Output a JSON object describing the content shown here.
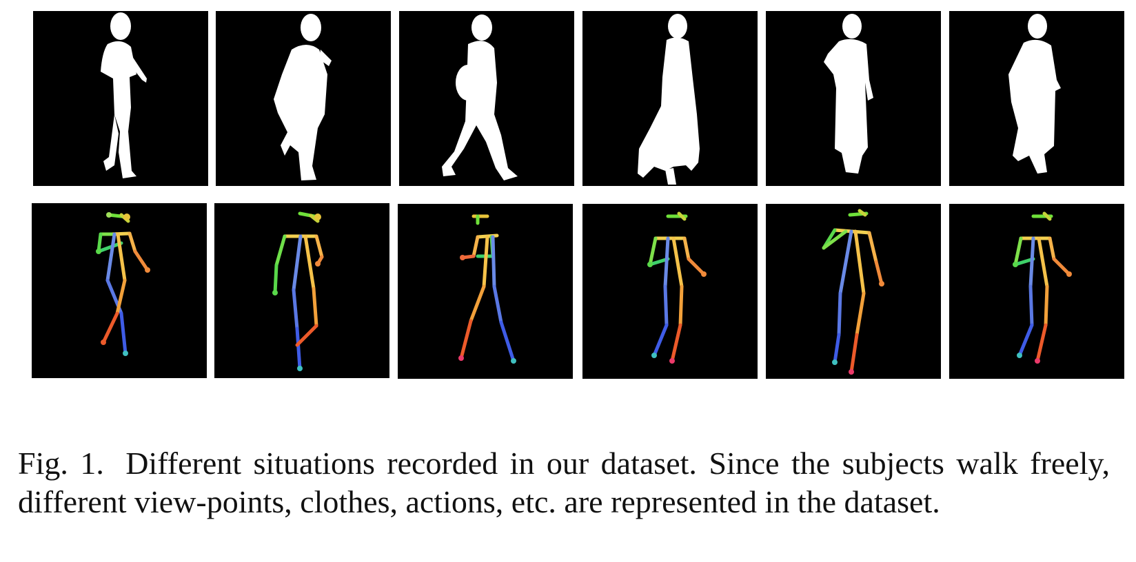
{
  "figure": {
    "rows": [
      {
        "kind": "silhouette",
        "panels": [
          "walking-side",
          "walking-turned",
          "walking-stride-bag",
          "long-dress",
          "skirt-frontal",
          "backpack-frontal"
        ]
      },
      {
        "kind": "pose-skeleton",
        "panels": [
          "skeleton-1",
          "skeleton-2",
          "skeleton-3",
          "skeleton-4",
          "skeleton-5",
          "skeleton-6"
        ]
      }
    ],
    "colors": {
      "background": "#000000",
      "silhouette": "#ffffff",
      "head": "#6fe03a",
      "right_arm": "#59d84a",
      "left_arm": "#f39a3a",
      "right_leg": "#4a63e0",
      "left_leg": "#ef5b2a",
      "torso": "#f2d050"
    }
  },
  "caption": {
    "label": "Fig. 1.",
    "text": "Different situations recorded in our dataset. Since the subjects walk freely, different view-points, clothes, actions, etc. are represented in the dataset."
  }
}
